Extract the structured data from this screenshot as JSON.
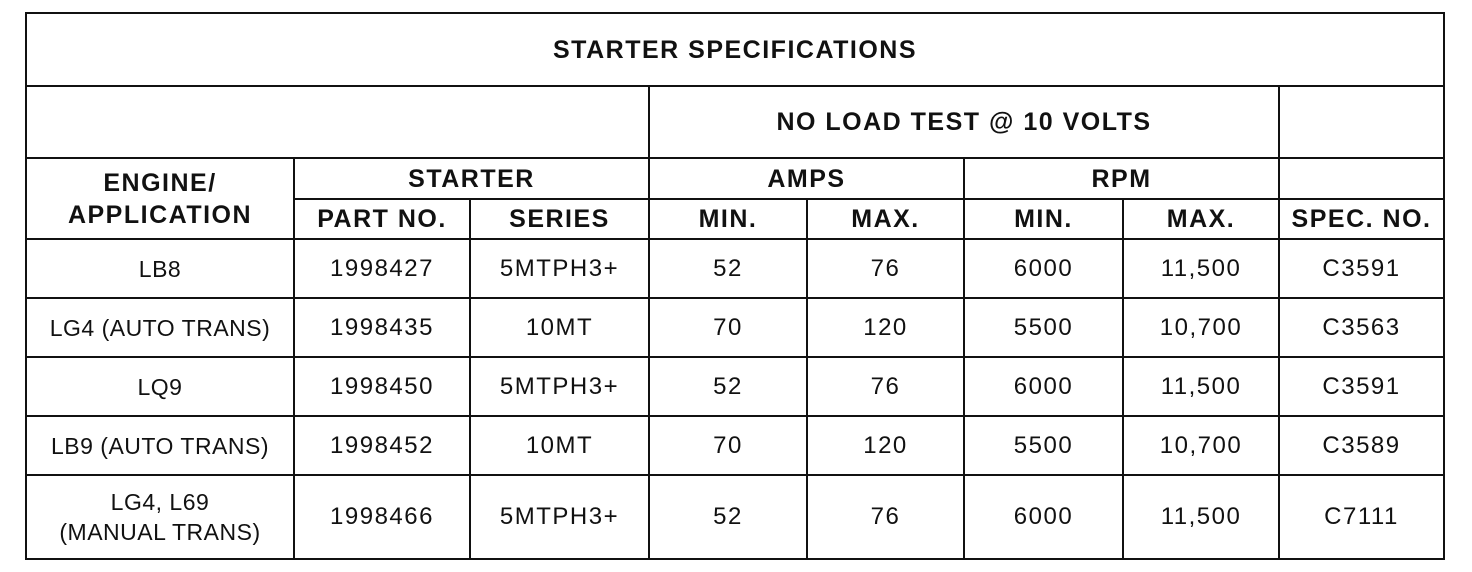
{
  "table": {
    "title": "STARTER SPECIFICATIONS",
    "test_header": "NO LOAD TEST @ 10 VOLTS",
    "group_headers": {
      "engine": "ENGINE/\nAPPLICATION",
      "starter": "STARTER",
      "amps": "AMPS",
      "rpm": "RPM"
    },
    "columns": [
      "PART NO.",
      "SERIES",
      "MIN.",
      "MAX.",
      "MIN.",
      "MAX.",
      "SPEC. NO."
    ],
    "rows": [
      [
        "LB8",
        "1998427",
        "5MTPH3+",
        "52",
        "76",
        "6000",
        "11,500",
        "C3591"
      ],
      [
        "LG4 (AUTO TRANS)",
        "1998435",
        "10MT",
        "70",
        "120",
        "5500",
        "10,700",
        "C3563"
      ],
      [
        "LQ9",
        "1998450",
        "5MTPH3+",
        "52",
        "76",
        "6000",
        "11,500",
        "C3591"
      ],
      [
        "LB9 (AUTO TRANS)",
        "1998452",
        "10MT",
        "70",
        "120",
        "5500",
        "10,700",
        "C3589"
      ],
      [
        "LG4, L69\n(MANUAL TRANS)",
        "1998466",
        "5MTPH3+",
        "52",
        "76",
        "6000",
        "11,500",
        "C7111"
      ]
    ]
  }
}
